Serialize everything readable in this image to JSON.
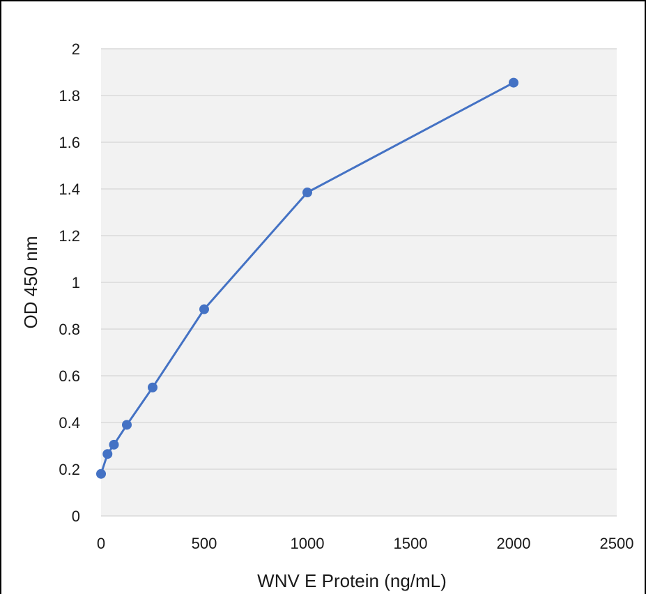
{
  "chart_data": {
    "type": "line",
    "title": "",
    "xlabel": "WNV E Protein (ng/mL)",
    "ylabel": "OD 450 nm",
    "xlim": [
      0,
      2500
    ],
    "ylim": [
      0,
      2
    ],
    "xticks": [
      0,
      500,
      1000,
      1500,
      2000,
      2500
    ],
    "yticks": [
      0,
      0.2,
      0.4,
      0.6,
      0.8,
      1,
      1.2,
      1.4,
      1.6,
      1.8,
      2
    ],
    "grid": "horizontal",
    "series": [
      {
        "color": "#4472C4",
        "marker": "circle",
        "points": [
          {
            "x": 0,
            "y": 0.18
          },
          {
            "x": 31.25,
            "y": 0.265
          },
          {
            "x": 62.5,
            "y": 0.305
          },
          {
            "x": 125,
            "y": 0.39
          },
          {
            "x": 250,
            "y": 0.55
          },
          {
            "x": 500,
            "y": 0.885
          },
          {
            "x": 1000,
            "y": 1.385
          },
          {
            "x": 2000,
            "y": 1.855
          }
        ]
      }
    ]
  },
  "colors": {
    "plot_background": "#f2f2f2",
    "gridline": "#d9d9d9",
    "series": "#4472C4",
    "frame": "#000000"
  }
}
